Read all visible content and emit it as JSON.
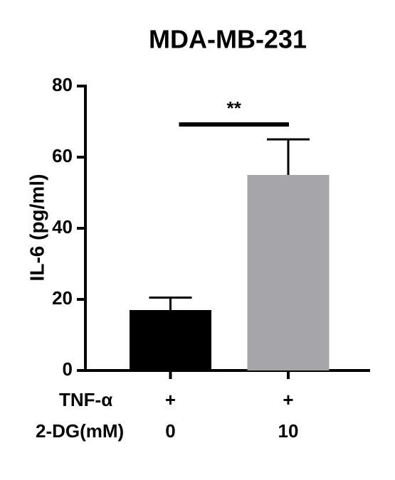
{
  "chart_data": {
    "type": "bar",
    "title": "MDA-MB-231",
    "y_label": "IL-6 (pg/ml)",
    "values": [
      17,
      55
    ],
    "errors": [
      3.5,
      10
    ],
    "colors": [
      "#000000",
      "#a6a6aa"
    ],
    "ylim": [
      0,
      80
    ],
    "yticks": [
      0,
      20,
      40,
      60,
      80
    ],
    "significance": {
      "label": "**",
      "from": 0,
      "to": 1
    },
    "conditions": [
      {
        "label": "TNF-α",
        "values": [
          "+",
          "+"
        ]
      },
      {
        "label": "2-DG(mM)",
        "values": [
          "0",
          "10"
        ]
      }
    ]
  }
}
